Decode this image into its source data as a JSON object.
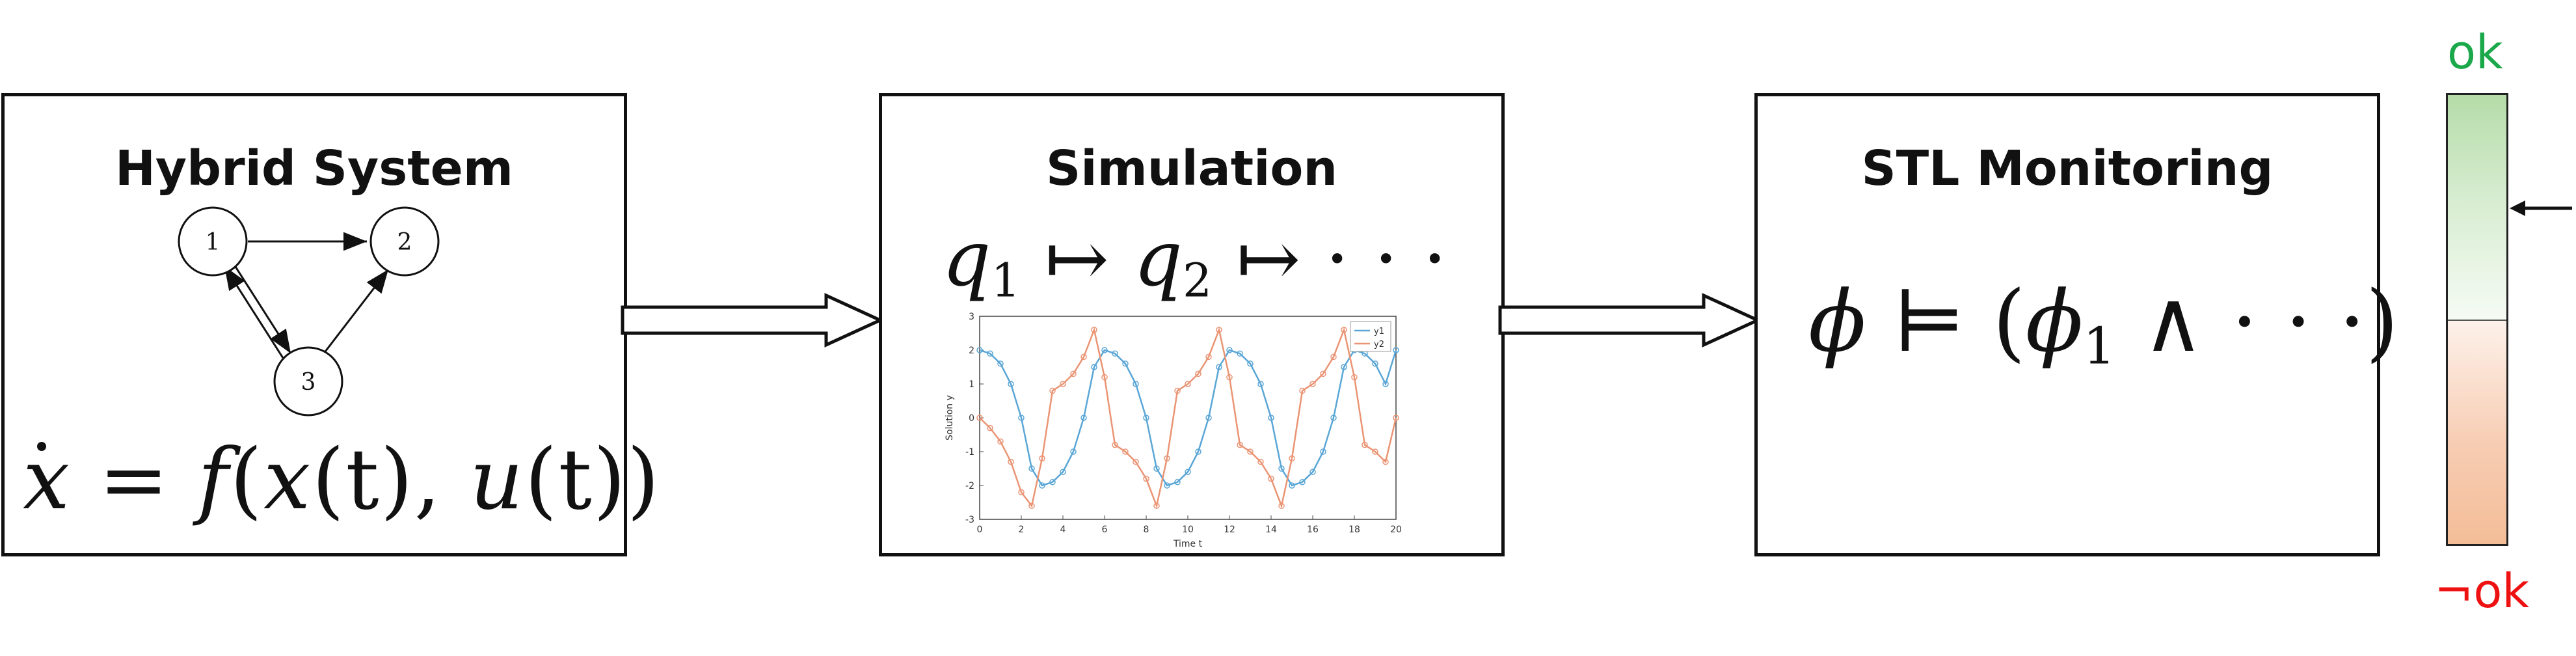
{
  "boxes": {
    "hybrid": {
      "title": "Hybrid System"
    },
    "simulation": {
      "title": "Simulation"
    },
    "monitoring": {
      "title": "STL Monitoring"
    }
  },
  "graph": {
    "nodes": [
      "1",
      "2",
      "3"
    ]
  },
  "hybrid_formula": {
    "x": "x",
    "eq": "=",
    "f": "f",
    "lp": "(",
    "x2": "x",
    "t1": "(t)",
    "comma": ",",
    "u": "u",
    "t2": "(t)",
    "rp": ")"
  },
  "sim_formula": {
    "q": "q",
    "s1": "1",
    "arrow": "↦",
    "q2": "q",
    "s2": "2",
    "arrow2": "↦",
    "dots": "· · ·"
  },
  "stl_formula": {
    "phi": "ϕ",
    "models": "⊨",
    "lp": "(",
    "phi1": "ϕ",
    "s1": "1",
    "and": "∧",
    "dots": "· · ·",
    "rp": ")"
  },
  "indicator": {
    "top_label": "ok",
    "bottom_label": "¬ok",
    "top_color": "#1aa84a",
    "bottom_color": "#ee1111"
  },
  "chart_data": {
    "type": "line",
    "title": "",
    "xlabel": "Time t",
    "ylabel": "Solution y",
    "xlim": [
      0,
      20
    ],
    "ylim": [
      -3,
      3
    ],
    "xticks": [
      0,
      2,
      4,
      6,
      8,
      10,
      12,
      14,
      16,
      18,
      20
    ],
    "yticks": [
      -3,
      -2,
      -1,
      0,
      1,
      2,
      3
    ],
    "legend": "top-right",
    "series": [
      {
        "name": "y1",
        "color": "#5aa6d6",
        "x": [
          0,
          0.5,
          1,
          1.5,
          2,
          2.5,
          3,
          3.5,
          4,
          4.5,
          5,
          5.5,
          6,
          6.5,
          7,
          7.5,
          8,
          8.5,
          9,
          9.5,
          10,
          10.5,
          11,
          11.5,
          12,
          12.5,
          13,
          13.5,
          14,
          14.5,
          15,
          15.5,
          16,
          16.5,
          17,
          17.5,
          18,
          18.5,
          19,
          19.5,
          20
        ],
        "values": [
          2,
          1.9,
          1.6,
          1.0,
          0.0,
          -1.5,
          -2.0,
          -1.9,
          -1.6,
          -1.0,
          0.0,
          1.5,
          2.0,
          1.9,
          1.6,
          1.0,
          0.0,
          -1.5,
          -2.0,
          -1.9,
          -1.6,
          -1.0,
          0.0,
          1.5,
          2.0,
          1.9,
          1.6,
          1.0,
          0.0,
          -1.5,
          -2.0,
          -1.9,
          -1.6,
          -1.0,
          0.0,
          1.5,
          2.0,
          1.9,
          1.6,
          1.0,
          2.0
        ]
      },
      {
        "name": "y2",
        "color": "#ea9474",
        "x": [
          0,
          0.5,
          1,
          1.5,
          2,
          2.5,
          3,
          3.5,
          4,
          4.5,
          5,
          5.5,
          6,
          6.5,
          7,
          7.5,
          8,
          8.5,
          9,
          9.5,
          10,
          10.5,
          11,
          11.5,
          12,
          12.5,
          13,
          13.5,
          14,
          14.5,
          15,
          15.5,
          16,
          16.5,
          17,
          17.5,
          18,
          18.5,
          19,
          19.5,
          20
        ],
        "values": [
          0,
          -0.3,
          -0.7,
          -1.3,
          -2.2,
          -2.6,
          -1.2,
          0.8,
          1.0,
          1.3,
          1.8,
          2.6,
          1.2,
          -0.8,
          -1.0,
          -1.3,
          -1.8,
          -2.6,
          -1.2,
          0.8,
          1.0,
          1.3,
          1.8,
          2.6,
          1.2,
          -0.8,
          -1.0,
          -1.3,
          -1.8,
          -2.6,
          -1.2,
          0.8,
          1.0,
          1.3,
          1.8,
          2.6,
          1.2,
          -0.8,
          -1.0,
          -1.3,
          0.0
        ]
      }
    ]
  }
}
